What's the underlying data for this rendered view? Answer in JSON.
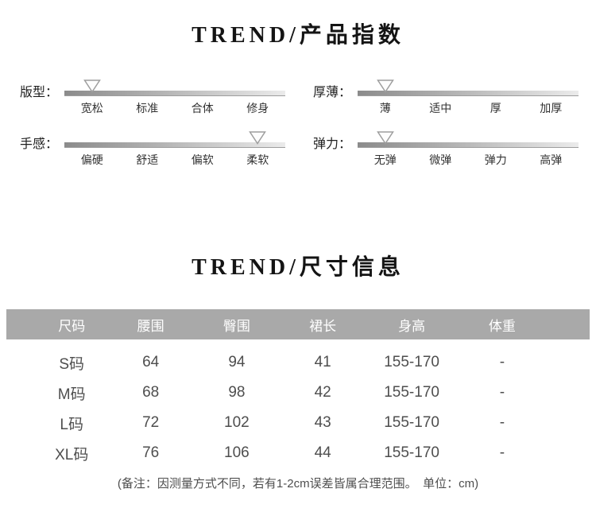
{
  "product_index": {
    "title": "TREND/产品指数",
    "sliders": [
      {
        "name": "fit",
        "label": "版型：",
        "options": [
          "宽松",
          "标准",
          "合体",
          "修身"
        ],
        "marker_index": 0
      },
      {
        "name": "thickness",
        "label": "厚薄：",
        "options": [
          "薄",
          "适中",
          "厚",
          "加厚"
        ],
        "marker_index": 0
      },
      {
        "name": "feel",
        "label": "手感：",
        "options": [
          "偏硬",
          "舒适",
          "偏软",
          "柔软"
        ],
        "marker_index": 3
      },
      {
        "name": "elasticity",
        "label": "弹力：",
        "options": [
          "无弹",
          "微弹",
          "弹力",
          "高弹"
        ],
        "marker_index": 0
      }
    ]
  },
  "size_info": {
    "title": "TREND/尺寸信息",
    "table": {
      "headers": [
        "尺码",
        "腰围",
        "臀围",
        "裙长",
        "身高",
        "体重"
      ],
      "rows": [
        [
          "S码",
          "64",
          "94",
          "41",
          "155-170",
          "-"
        ],
        [
          "M码",
          "68",
          "98",
          "42",
          "155-170",
          "-"
        ],
        [
          "L码",
          "72",
          "102",
          "43",
          "155-170",
          "-"
        ],
        [
          "XL码",
          "76",
          "106",
          "44",
          "155-170",
          "-"
        ]
      ]
    },
    "note": "(备注：因测量方式不同，若有1-2cm误差皆属合理范围。　单位：cm)"
  },
  "colors": {
    "table_header_bg": "#a9a9a9",
    "table_header_text": "#ffffff",
    "bar_gradient_start": "#8b8b8b",
    "bar_gradient_end": "#ebebeb",
    "marker_fill": "#fdfdfd",
    "marker_stroke": "#9e9e9e",
    "body_text": "#4e4e4e"
  }
}
